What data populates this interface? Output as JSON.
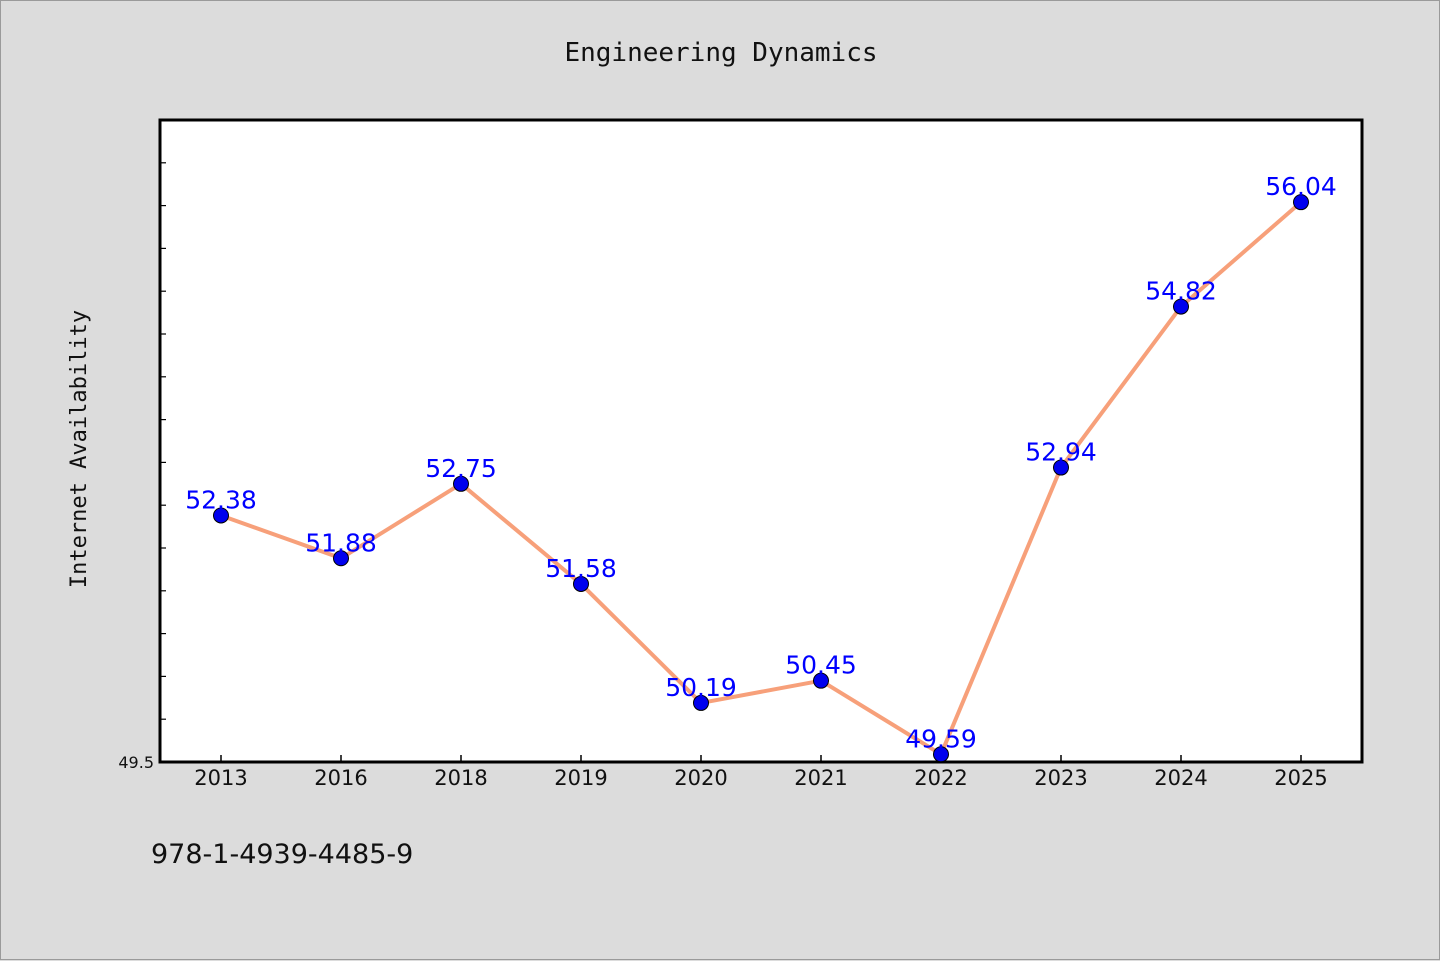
{
  "chart_data": {
    "type": "line",
    "title": "Engineering Dynamics",
    "xlabel": "",
    "ylabel": "Internet Availability",
    "categories": [
      "2013",
      "2016",
      "2018",
      "2019",
      "2020",
      "2021",
      "2022",
      "2023",
      "2024",
      "2025"
    ],
    "series": [
      {
        "values": [
          52.38,
          51.88,
          52.75,
          51.58,
          50.19,
          50.45,
          49.59,
          52.94,
          54.82,
          56.04
        ],
        "line_color": "#f7a07a",
        "marker_color": "#0000ee"
      }
    ],
    "ylim": [
      49.5,
      57.0
    ],
    "yticks": [
      "49.5"
    ],
    "label_color": "#0000ff",
    "grid": false,
    "legend": "none"
  },
  "footer": {
    "isbn": "978-1-4939-4485-9"
  }
}
